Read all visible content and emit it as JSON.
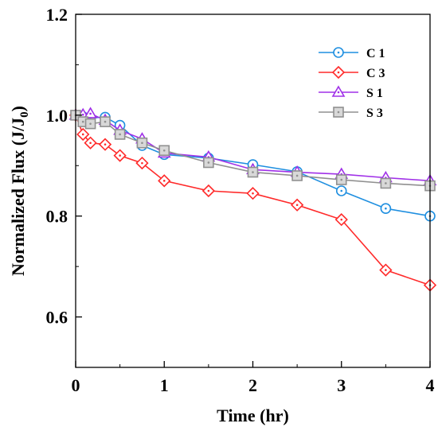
{
  "chart_data": {
    "type": "line",
    "title": "",
    "xlabel": "Time (hr)",
    "ylabel": "Normalized Flux (J/J",
    "ylabel_sub": "0",
    "ylabel_end": ")",
    "xlim": [
      0,
      4
    ],
    "ylim": [
      0.5,
      1.2
    ],
    "xticks": [
      0,
      1,
      2,
      3,
      4
    ],
    "yticks": [
      0.6,
      0.8,
      1.0,
      1.2
    ],
    "ytick_labels": [
      "0.6",
      "0.8",
      "1.0",
      "1.2"
    ],
    "xtick_labels": [
      "0",
      "1",
      "2",
      "3",
      "4"
    ],
    "grid": false,
    "legend_position": "top-right",
    "series": [
      {
        "name": "C 1",
        "color": "#1f8fe0",
        "marker": "circle",
        "x": [
          0,
          0.083,
          0.167,
          0.333,
          0.5,
          0.75,
          1,
          1.5,
          2,
          2.5,
          3,
          3.5,
          4
        ],
        "y": [
          1.0,
          0.997,
          0.995,
          0.996,
          0.98,
          0.94,
          0.922,
          0.915,
          0.902,
          0.888,
          0.85,
          0.815,
          0.8
        ]
      },
      {
        "name": "C 3",
        "color": "#ff2a2a",
        "marker": "diamond",
        "x": [
          0,
          0.083,
          0.167,
          0.333,
          0.5,
          0.75,
          1,
          1.5,
          2,
          2.5,
          3,
          3.5,
          4
        ],
        "y": [
          1.0,
          0.962,
          0.945,
          0.942,
          0.92,
          0.905,
          0.87,
          0.85,
          0.845,
          0.822,
          0.793,
          0.693,
          0.663
        ]
      },
      {
        "name": "S 1",
        "color": "#a030e8",
        "marker": "triangle",
        "x": [
          0,
          0.083,
          0.167,
          0.333,
          0.5,
          0.75,
          1,
          1.5,
          2,
          2.5,
          3,
          3.5,
          4
        ],
        "y": [
          1.0,
          1.001,
          1.003,
          0.99,
          0.97,
          0.953,
          0.925,
          0.917,
          0.892,
          0.887,
          0.883,
          0.876,
          0.87
        ]
      },
      {
        "name": "S 3",
        "color": "#909090",
        "marker": "square",
        "x": [
          0,
          0.083,
          0.167,
          0.333,
          0.5,
          0.75,
          1,
          1.5,
          2,
          2.5,
          3,
          3.5,
          4
        ],
        "y": [
          1.0,
          0.987,
          0.983,
          0.987,
          0.962,
          0.945,
          0.93,
          0.906,
          0.887,
          0.88,
          0.872,
          0.865,
          0.86
        ]
      }
    ]
  }
}
